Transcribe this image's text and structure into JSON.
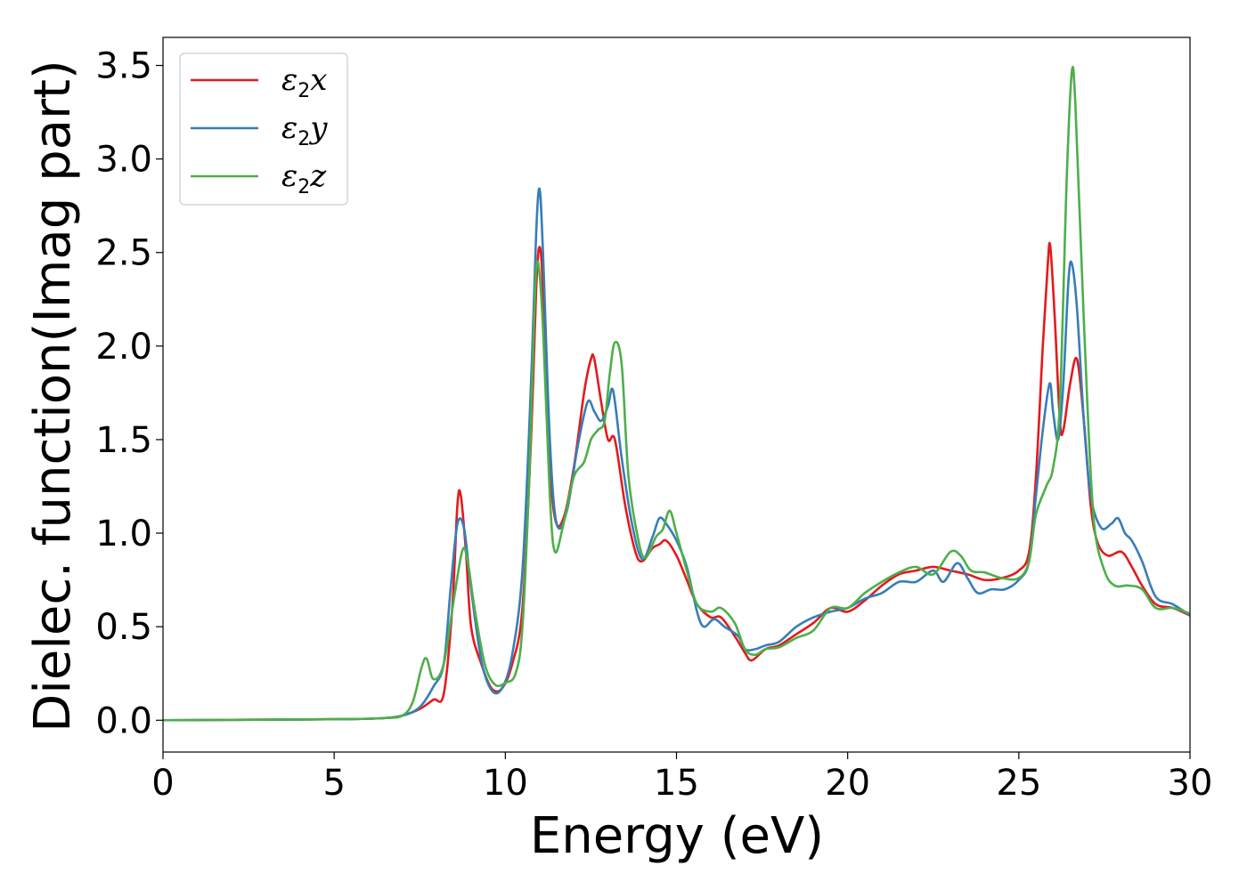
{
  "chart_data": {
    "type": "line",
    "title": "",
    "xlabel": "Energy (eV)",
    "ylabel": "Dielec. function(Imag part)",
    "xlim": [
      0,
      30
    ],
    "ylim": [
      -0.17,
      3.65
    ],
    "xticks": [
      0,
      5,
      10,
      15,
      20,
      25,
      30
    ],
    "yticks": [
      0.0,
      0.5,
      1.0,
      1.5,
      2.0,
      2.5,
      3.0,
      3.5
    ],
    "xtick_labels": [
      "0",
      "5",
      "10",
      "15",
      "20",
      "25",
      "30"
    ],
    "ytick_labels": [
      "0.0",
      "0.5",
      "1.0",
      "1.5",
      "2.0",
      "2.5",
      "3.0",
      "3.5"
    ],
    "grid": false,
    "legend_position": "top-left",
    "series": [
      {
        "name": "ε₂x",
        "legend_main": "ε",
        "legend_sub": "2",
        "legend_var": "x",
        "color": "#e41a1c",
        "points": [
          [
            0,
            0.0
          ],
          [
            2,
            0.002
          ],
          [
            4,
            0.004
          ],
          [
            5.5,
            0.006
          ],
          [
            6.5,
            0.012
          ],
          [
            7,
            0.025
          ],
          [
            7.5,
            0.06
          ],
          [
            7.9,
            0.11
          ],
          [
            8.2,
            0.14
          ],
          [
            8.45,
            0.6
          ],
          [
            8.6,
            1.15
          ],
          [
            8.7,
            1.2
          ],
          [
            8.85,
            0.9
          ],
          [
            9.0,
            0.5
          ],
          [
            9.3,
            0.3
          ],
          [
            9.6,
            0.17
          ],
          [
            9.9,
            0.17
          ],
          [
            10.2,
            0.3
          ],
          [
            10.5,
            0.6
          ],
          [
            10.75,
            1.5
          ],
          [
            10.9,
            2.3
          ],
          [
            11.0,
            2.53
          ],
          [
            11.1,
            2.3
          ],
          [
            11.25,
            1.5
          ],
          [
            11.45,
            1.08
          ],
          [
            11.7,
            1.08
          ],
          [
            12.0,
            1.35
          ],
          [
            12.3,
            1.75
          ],
          [
            12.5,
            1.93
          ],
          [
            12.6,
            1.93
          ],
          [
            12.8,
            1.7
          ],
          [
            13.0,
            1.5
          ],
          [
            13.2,
            1.5
          ],
          [
            13.5,
            1.15
          ],
          [
            13.8,
            0.9
          ],
          [
            14.0,
            0.85
          ],
          [
            14.3,
            0.92
          ],
          [
            14.5,
            0.94
          ],
          [
            14.7,
            0.96
          ],
          [
            15.0,
            0.88
          ],
          [
            15.3,
            0.75
          ],
          [
            15.6,
            0.62
          ],
          [
            16.0,
            0.55
          ],
          [
            16.3,
            0.55
          ],
          [
            16.7,
            0.45
          ],
          [
            17.0,
            0.36
          ],
          [
            17.2,
            0.32
          ],
          [
            17.6,
            0.38
          ],
          [
            18.0,
            0.4
          ],
          [
            18.5,
            0.46
          ],
          [
            19.0,
            0.52
          ],
          [
            19.5,
            0.6
          ],
          [
            20.0,
            0.58
          ],
          [
            20.5,
            0.64
          ],
          [
            21.0,
            0.72
          ],
          [
            21.5,
            0.78
          ],
          [
            22.0,
            0.8
          ],
          [
            22.5,
            0.82
          ],
          [
            23.0,
            0.8
          ],
          [
            23.5,
            0.78
          ],
          [
            24.0,
            0.75
          ],
          [
            24.5,
            0.76
          ],
          [
            25.0,
            0.8
          ],
          [
            25.3,
            0.9
          ],
          [
            25.5,
            1.3
          ],
          [
            25.7,
            2.0
          ],
          [
            25.85,
            2.45
          ],
          [
            25.92,
            2.53
          ],
          [
            26.05,
            2.15
          ],
          [
            26.2,
            1.6
          ],
          [
            26.3,
            1.55
          ],
          [
            26.5,
            1.8
          ],
          [
            26.7,
            1.93
          ],
          [
            26.9,
            1.6
          ],
          [
            27.1,
            1.15
          ],
          [
            27.3,
            0.95
          ],
          [
            27.6,
            0.88
          ],
          [
            28.0,
            0.9
          ],
          [
            28.3,
            0.82
          ],
          [
            28.6,
            0.72
          ],
          [
            29.0,
            0.62
          ],
          [
            29.5,
            0.6
          ],
          [
            30.0,
            0.56
          ]
        ]
      },
      {
        "name": "ε₂y",
        "legend_main": "ε",
        "legend_sub": "2",
        "legend_var": "y",
        "color": "#377eb8",
        "points": [
          [
            0,
            0.0
          ],
          [
            2,
            0.002
          ],
          [
            4,
            0.004
          ],
          [
            5.5,
            0.006
          ],
          [
            6.5,
            0.012
          ],
          [
            7,
            0.025
          ],
          [
            7.5,
            0.07
          ],
          [
            7.9,
            0.18
          ],
          [
            8.2,
            0.3
          ],
          [
            8.4,
            0.7
          ],
          [
            8.6,
            1.05
          ],
          [
            8.8,
            1.02
          ],
          [
            9.0,
            0.7
          ],
          [
            9.3,
            0.32
          ],
          [
            9.6,
            0.16
          ],
          [
            9.9,
            0.17
          ],
          [
            10.2,
            0.35
          ],
          [
            10.5,
            0.8
          ],
          [
            10.75,
            1.8
          ],
          [
            10.9,
            2.6
          ],
          [
            11.0,
            2.84
          ],
          [
            11.1,
            2.5
          ],
          [
            11.3,
            1.5
          ],
          [
            11.5,
            1.05
          ],
          [
            11.8,
            1.12
          ],
          [
            12.1,
            1.45
          ],
          [
            12.4,
            1.7
          ],
          [
            12.6,
            1.65
          ],
          [
            12.8,
            1.6
          ],
          [
            13.0,
            1.68
          ],
          [
            13.15,
            1.76
          ],
          [
            13.4,
            1.4
          ],
          [
            13.7,
            1.05
          ],
          [
            14.0,
            0.86
          ],
          [
            14.3,
            0.98
          ],
          [
            14.5,
            1.08
          ],
          [
            14.7,
            1.05
          ],
          [
            15.0,
            0.96
          ],
          [
            15.3,
            0.82
          ],
          [
            15.6,
            0.58
          ],
          [
            15.8,
            0.5
          ],
          [
            16.1,
            0.54
          ],
          [
            16.4,
            0.5
          ],
          [
            16.8,
            0.45
          ],
          [
            17.0,
            0.38
          ],
          [
            17.3,
            0.38
          ],
          [
            17.6,
            0.4
          ],
          [
            18.0,
            0.42
          ],
          [
            18.5,
            0.5
          ],
          [
            19.0,
            0.55
          ],
          [
            19.5,
            0.58
          ],
          [
            20.0,
            0.6
          ],
          [
            20.5,
            0.65
          ],
          [
            21.0,
            0.68
          ],
          [
            21.5,
            0.74
          ],
          [
            22.0,
            0.74
          ],
          [
            22.5,
            0.8
          ],
          [
            22.8,
            0.74
          ],
          [
            23.2,
            0.84
          ],
          [
            23.5,
            0.76
          ],
          [
            23.8,
            0.68
          ],
          [
            24.2,
            0.7
          ],
          [
            24.6,
            0.7
          ],
          [
            25.0,
            0.75
          ],
          [
            25.3,
            0.85
          ],
          [
            25.5,
            1.2
          ],
          [
            25.7,
            1.55
          ],
          [
            25.9,
            1.8
          ],
          [
            26.0,
            1.65
          ],
          [
            26.15,
            1.5
          ],
          [
            26.3,
            1.8
          ],
          [
            26.45,
            2.35
          ],
          [
            26.55,
            2.44
          ],
          [
            26.7,
            2.2
          ],
          [
            26.9,
            1.6
          ],
          [
            27.1,
            1.2
          ],
          [
            27.4,
            1.03
          ],
          [
            27.7,
            1.05
          ],
          [
            27.9,
            1.08
          ],
          [
            28.1,
            1.0
          ],
          [
            28.3,
            0.96
          ],
          [
            28.6,
            0.85
          ],
          [
            29.0,
            0.66
          ],
          [
            29.5,
            0.62
          ],
          [
            30.0,
            0.56
          ]
        ]
      },
      {
        "name": "ε₂z",
        "legend_main": "ε",
        "legend_sub": "2",
        "legend_var": "z",
        "color": "#4daf4a",
        "points": [
          [
            0,
            0.0
          ],
          [
            2,
            0.002
          ],
          [
            4,
            0.004
          ],
          [
            5.5,
            0.006
          ],
          [
            6.5,
            0.012
          ],
          [
            7,
            0.025
          ],
          [
            7.3,
            0.1
          ],
          [
            7.55,
            0.28
          ],
          [
            7.7,
            0.33
          ],
          [
            7.9,
            0.22
          ],
          [
            8.2,
            0.3
          ],
          [
            8.5,
            0.65
          ],
          [
            8.75,
            0.91
          ],
          [
            8.9,
            0.85
          ],
          [
            9.1,
            0.6
          ],
          [
            9.4,
            0.3
          ],
          [
            9.7,
            0.19
          ],
          [
            10.0,
            0.2
          ],
          [
            10.3,
            0.25
          ],
          [
            10.5,
            0.5
          ],
          [
            10.7,
            1.3
          ],
          [
            10.85,
            2.2
          ],
          [
            10.95,
            2.45
          ],
          [
            11.1,
            2.1
          ],
          [
            11.3,
            1.2
          ],
          [
            11.45,
            0.9
          ],
          [
            11.7,
            1.05
          ],
          [
            12.0,
            1.3
          ],
          [
            12.3,
            1.38
          ],
          [
            12.5,
            1.5
          ],
          [
            12.7,
            1.55
          ],
          [
            12.9,
            1.6
          ],
          [
            13.05,
            1.85
          ],
          [
            13.2,
            2.02
          ],
          [
            13.4,
            1.9
          ],
          [
            13.6,
            1.3
          ],
          [
            13.9,
            0.95
          ],
          [
            14.1,
            0.87
          ],
          [
            14.4,
            0.98
          ],
          [
            14.6,
            1.02
          ],
          [
            14.8,
            1.12
          ],
          [
            15.0,
            1.0
          ],
          [
            15.3,
            0.8
          ],
          [
            15.6,
            0.62
          ],
          [
            16.0,
            0.58
          ],
          [
            16.3,
            0.6
          ],
          [
            16.7,
            0.52
          ],
          [
            17.0,
            0.38
          ],
          [
            17.3,
            0.35
          ],
          [
            17.6,
            0.38
          ],
          [
            18.0,
            0.39
          ],
          [
            18.5,
            0.44
          ],
          [
            19.0,
            0.48
          ],
          [
            19.5,
            0.6
          ],
          [
            20.0,
            0.6
          ],
          [
            20.5,
            0.68
          ],
          [
            21.0,
            0.74
          ],
          [
            21.5,
            0.79
          ],
          [
            22.0,
            0.82
          ],
          [
            22.5,
            0.78
          ],
          [
            23.0,
            0.9
          ],
          [
            23.3,
            0.88
          ],
          [
            23.6,
            0.8
          ],
          [
            24.0,
            0.79
          ],
          [
            24.5,
            0.76
          ],
          [
            25.0,
            0.76
          ],
          [
            25.3,
            0.85
          ],
          [
            25.5,
            1.1
          ],
          [
            25.8,
            1.25
          ],
          [
            26.0,
            1.35
          ],
          [
            26.2,
            1.7
          ],
          [
            26.4,
            2.9
          ],
          [
            26.55,
            3.47
          ],
          [
            26.65,
            3.3
          ],
          [
            26.8,
            2.6
          ],
          [
            27.0,
            1.7
          ],
          [
            27.2,
            1.05
          ],
          [
            27.5,
            0.8
          ],
          [
            27.8,
            0.72
          ],
          [
            28.2,
            0.72
          ],
          [
            28.6,
            0.7
          ],
          [
            29.0,
            0.6
          ],
          [
            29.5,
            0.6
          ],
          [
            30.0,
            0.57
          ]
        ]
      }
    ]
  }
}
